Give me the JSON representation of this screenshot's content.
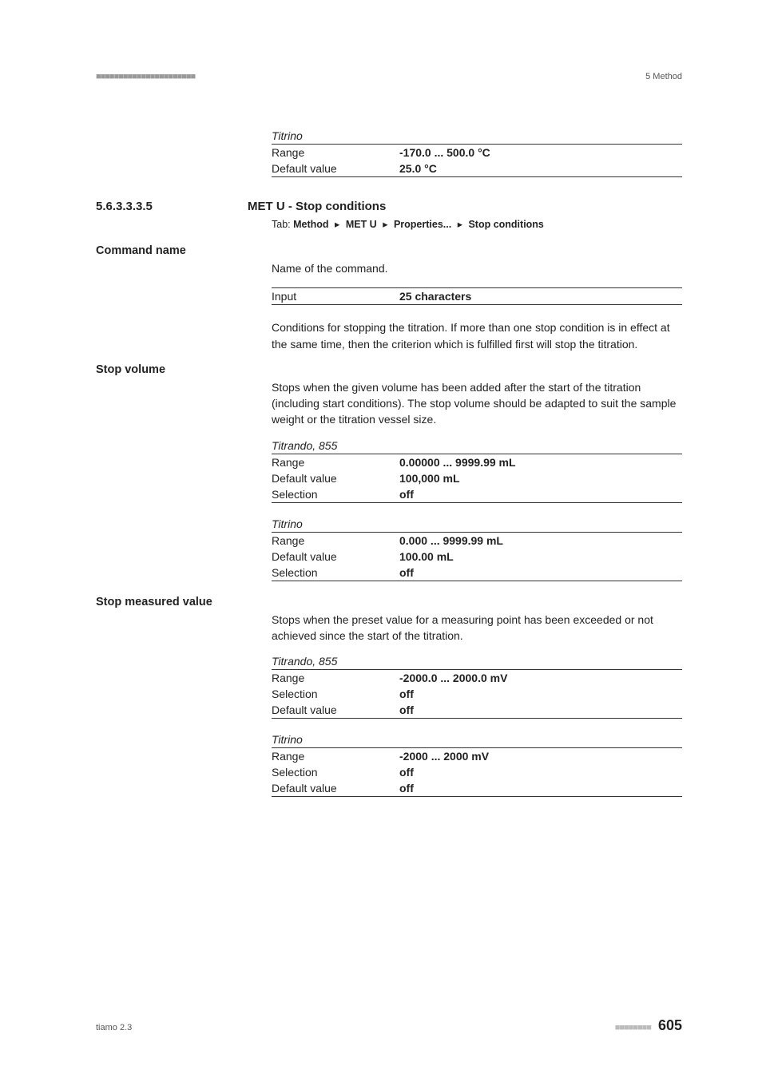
{
  "header": {
    "dashes": "■■■■■■■■■■■■■■■■■■■■■■",
    "chapter": "5 Method"
  },
  "titrino_range_initial": {
    "label": "Titrino",
    "rows": [
      {
        "key": "Range",
        "val": "-170.0 ... 500.0 °C"
      },
      {
        "key": "Default value",
        "val": "25.0 °C"
      }
    ]
  },
  "section": {
    "num": "5.6.3.3.3.5",
    "title": "MET U - Stop conditions",
    "tab_label": "Tab:",
    "crumbs": [
      "Method",
      "MET U",
      "Properties...",
      "Stop conditions"
    ],
    "sep": "▸"
  },
  "command_name": {
    "label": "Command name",
    "desc": "Name of the command.",
    "input_row": {
      "key": "Input",
      "val": "25 characters"
    },
    "after": "Conditions for stopping the titration. If more than one stop condition is in effect at the same time, then the criterion which is fulfilled first will stop the titration."
  },
  "stop_volume": {
    "label": "Stop volume",
    "desc": "Stops when the given volume has been added after the start of the titration (including start conditions). The stop volume should be adapted to suit the sample weight or the titration vessel size.",
    "table_a": {
      "caption": "Titrando, 855",
      "rows": [
        {
          "key": "Range",
          "val": "0.00000 ... 9999.99 mL"
        },
        {
          "key": "Default value",
          "val": "100,000 mL"
        },
        {
          "key": "Selection",
          "val": "off"
        }
      ]
    },
    "table_b": {
      "caption": "Titrino",
      "rows": [
        {
          "key": "Range",
          "val": "0.000 ... 9999.99 mL"
        },
        {
          "key": "Default value",
          "val": "100.00 mL"
        },
        {
          "key": "Selection",
          "val": "off"
        }
      ]
    }
  },
  "stop_measured": {
    "label": "Stop measured value",
    "desc": "Stops when the preset value for a measuring point has been exceeded or not achieved since the start of the titration.",
    "table_a": {
      "caption": "Titrando, 855",
      "rows": [
        {
          "key": "Range",
          "val": "-2000.0 ... 2000.0 mV"
        },
        {
          "key": "Selection",
          "val": "off"
        },
        {
          "key": "Default value",
          "val": "off"
        }
      ]
    },
    "table_b": {
      "caption": "Titrino",
      "rows": [
        {
          "key": "Range",
          "val": "-2000 ... 2000 mV"
        },
        {
          "key": "Selection",
          "val": "off"
        },
        {
          "key": "Default value",
          "val": "off"
        }
      ]
    }
  },
  "footer": {
    "left": "tiamo 2.3",
    "dashes": "■■■■■■■■",
    "page": "605"
  }
}
